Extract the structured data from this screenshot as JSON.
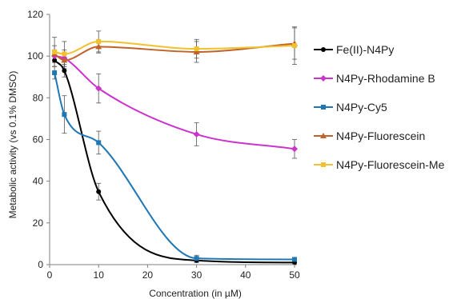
{
  "chart_data": {
    "type": "line",
    "title": "",
    "xlabel": "Concentration (in µM)",
    "ylabel": "Metabolic activity (vs 0.1% DMSO)",
    "xlim": [
      0,
      50
    ],
    "ylim": [
      0,
      120
    ],
    "xticks": [
      "0",
      "10",
      "20",
      "30",
      "40",
      "50"
    ],
    "yticks": [
      "0",
      "20",
      "40",
      "60",
      "80",
      "100",
      "120"
    ],
    "grid": false,
    "legend_position": "right",
    "x": [
      1,
      3,
      10,
      30,
      50
    ],
    "series": [
      {
        "name": "Fe(II)-N4Py",
        "color": "#000000",
        "marker": "circle",
        "values": [
          98,
          93,
          35,
          2,
          1
        ],
        "error": [
          3,
          3,
          4,
          1,
          1
        ]
      },
      {
        "name": "N4Py-Rhodamine B",
        "color": "#cc33cc",
        "marker": "diamond",
        "values": [
          100,
          99,
          84.5,
          62.5,
          55.5
        ],
        "error": [
          3,
          4,
          7,
          5.5,
          4.5
        ]
      },
      {
        "name": "N4Py-Cy5",
        "color": "#1f77b4",
        "marker": "square",
        "values": [
          92,
          72,
          58.5,
          3,
          2.5
        ],
        "error": [
          3,
          9,
          5.5,
          1.5,
          1
        ]
      },
      {
        "name": "N4Py-Fluorescein",
        "color": "#c0622a",
        "marker": "triangle",
        "values": [
          101,
          98,
          104.5,
          102,
          106
        ],
        "error": [
          4,
          4,
          3,
          5,
          7.5
        ]
      },
      {
        "name": "N4Py-Fluorescein-Me",
        "color": "#f2c12e",
        "marker": "square",
        "values": [
          102,
          101,
          107,
          103.5,
          105
        ],
        "error": [
          7,
          6,
          5,
          4.5,
          9
        ]
      }
    ]
  }
}
